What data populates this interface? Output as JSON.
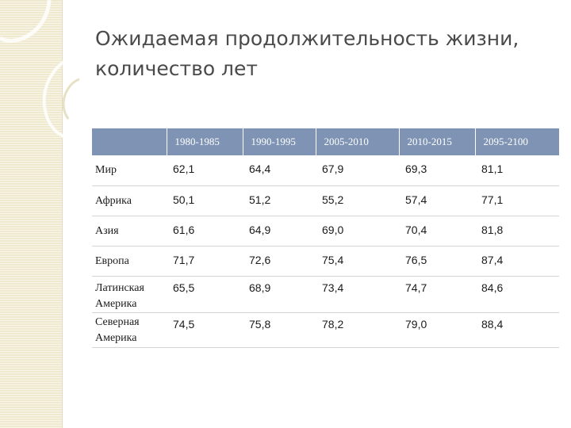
{
  "title": {
    "line1": "Ожидаемая продолжительность жизни,",
    "line2": "количество лет"
  },
  "table": {
    "columns": [
      "",
      "1980-1985",
      "1990-1995",
      "2005-2010",
      "2010-2015",
      "2095-2100"
    ],
    "rows": [
      {
        "label": "Мир",
        "values": [
          "62,1",
          "64,4",
          "67,9",
          "69,3",
          "81,1"
        ]
      },
      {
        "label": "Африка",
        "values": [
          "50,1",
          "51,2",
          "55,2",
          "57,4",
          "77,1"
        ]
      },
      {
        "label": "Азия",
        "values": [
          "61,6",
          "64,9",
          "69,0",
          "70,4",
          "81,8"
        ]
      },
      {
        "label": "Европа",
        "values": [
          "71,7",
          "72,6",
          "75,4",
          "76,5",
          "87,4"
        ]
      },
      {
        "label": "Латинская Америка",
        "values": [
          "65,5",
          "68,9",
          "73,4",
          "74,7",
          "84,6"
        ]
      },
      {
        "label": "Северная Америка",
        "values": [
          "74,5",
          "75,8",
          "78,2",
          "79,0",
          "88,4"
        ]
      }
    ]
  },
  "colors": {
    "header_bg": "#7f94b4",
    "side_strip": "#efe9cf"
  }
}
